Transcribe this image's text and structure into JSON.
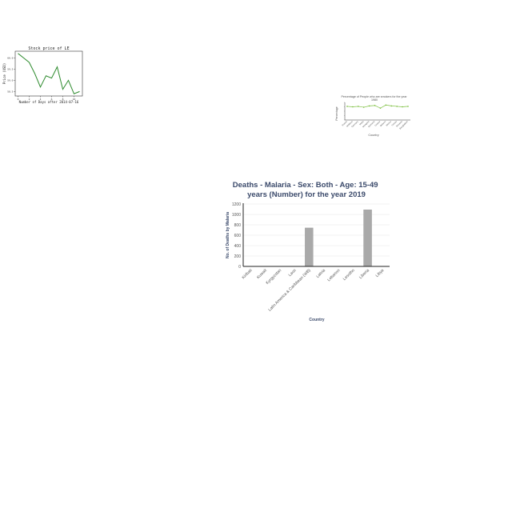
{
  "chart_data": [
    {
      "type": "line",
      "title": "Stock price of LE",
      "xlabel": "Number of Days after 2014-07-16",
      "ylabel": "Price (USD)",
      "x": [
        0,
        1,
        2,
        3,
        4,
        5,
        6,
        7,
        8,
        9,
        10,
        11
      ],
      "y": [
        60.2,
        60.0,
        59.8,
        59.3,
        58.7,
        59.2,
        59.1,
        59.6,
        58.6,
        59.0,
        58.4,
        58.5
      ],
      "series": [
        {
          "values": [
            60.2,
            60.0,
            59.8,
            59.3,
            58.7,
            59.2,
            59.1,
            59.6,
            58.6,
            59.0,
            58.4,
            58.5
          ]
        }
      ],
      "xticks": [
        "0",
        "2",
        "4",
        "6",
        "8",
        "10"
      ],
      "yticks": [
        "58.5",
        "59.0",
        "59.5",
        "60.0"
      ],
      "xlim": [
        -0.5,
        11.5
      ],
      "ylim": [
        58.3,
        60.3
      ],
      "grid": false,
      "color": "#2e8b2e"
    },
    {
      "type": "line",
      "title": "Percentage of People who are smokers for the year 1980",
      "xlabel": "Country",
      "ylabel": "Percentage",
      "categories": [
        "Russia",
        "Moldova",
        "Germany",
        "Malta",
        "Mongolia",
        "Romania",
        "Greece",
        "Belarus",
        "Mexico",
        "Tunisia",
        "Slovenia",
        "Bangladesh"
      ],
      "values": [
        31,
        30,
        31,
        29,
        32,
        33,
        27,
        34,
        32,
        31,
        30,
        31
      ],
      "ylim": [
        0,
        40
      ],
      "grid": false,
      "color": "#7cbf3e"
    },
    {
      "type": "bar",
      "title": "Deaths - Malaria - Sex: Both - Age: 15-49 years (Number) for the year 2019",
      "xlabel": "Country",
      "ylabel": "No. of Deaths by Malaria",
      "categories": [
        "Kiribati",
        "Kuwait",
        "Kyrgyzstan",
        "Laos",
        "Latin America & Caribbean (WB)",
        "Latvia",
        "Lebanon",
        "Lesotho",
        "Liberia",
        "Libya"
      ],
      "values": [
        0,
        0,
        0,
        3,
        740,
        0,
        0,
        0,
        1090,
        0
      ],
      "yticks": [
        0,
        200,
        400,
        600,
        800,
        1000,
        1200
      ],
      "ylim": [
        0,
        1200
      ],
      "grid": true,
      "bar_color": "#a9a9a9"
    }
  ]
}
